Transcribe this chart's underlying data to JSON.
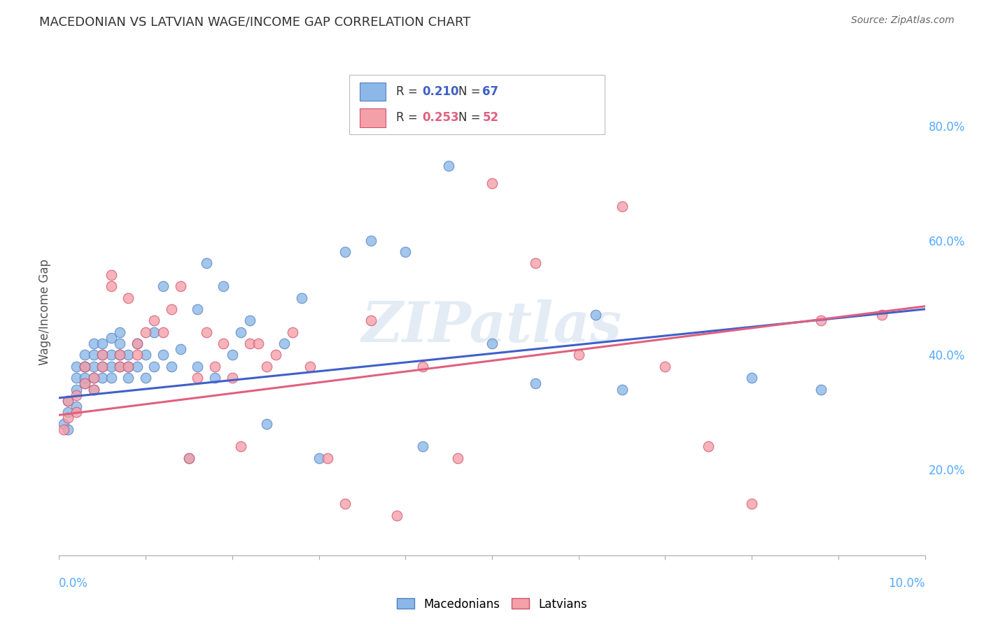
{
  "title": "MACEDONIAN VS LATVIAN WAGE/INCOME GAP CORRELATION CHART",
  "source": "Source: ZipAtlas.com",
  "ylabel": "Wage/Income Gap",
  "watermark": "ZIPatlas",
  "legend_blue_R_label": "R = ",
  "legend_blue_R_val": "0.210",
  "legend_blue_N_label": "N = ",
  "legend_blue_N_val": "67",
  "legend_pink_R_label": "R = ",
  "legend_pink_R_val": "0.253",
  "legend_pink_N_label": "N = ",
  "legend_pink_N_val": "52",
  "legend_blue_label": "Macedonians",
  "legend_pink_label": "Latvians",
  "blue_color": "#8BB8E8",
  "pink_color": "#F4A0A8",
  "blue_edge_color": "#5580C0",
  "pink_edge_color": "#D05070",
  "blue_line_color": "#4060C8",
  "pink_line_color": "#E06080",
  "background_color": "#FFFFFF",
  "grid_color": "#DDDDDD",
  "title_color": "#333333",
  "source_color": "#666666",
  "tick_label_color": "#55AAFF",
  "ylabel_color": "#555555",
  "x_min": 0.0,
  "x_max": 0.1,
  "y_min": 0.05,
  "y_max": 0.9,
  "blue_points_x": [
    0.0005,
    0.001,
    0.001,
    0.001,
    0.002,
    0.002,
    0.002,
    0.002,
    0.003,
    0.003,
    0.003,
    0.003,
    0.003,
    0.004,
    0.004,
    0.004,
    0.004,
    0.004,
    0.005,
    0.005,
    0.005,
    0.005,
    0.006,
    0.006,
    0.006,
    0.006,
    0.007,
    0.007,
    0.007,
    0.007,
    0.008,
    0.008,
    0.008,
    0.009,
    0.009,
    0.01,
    0.01,
    0.011,
    0.011,
    0.012,
    0.012,
    0.013,
    0.014,
    0.015,
    0.016,
    0.016,
    0.017,
    0.018,
    0.019,
    0.02,
    0.021,
    0.022,
    0.024,
    0.026,
    0.028,
    0.03,
    0.033,
    0.036,
    0.04,
    0.042,
    0.045,
    0.05,
    0.055,
    0.062,
    0.065,
    0.08,
    0.088
  ],
  "blue_points_y": [
    0.28,
    0.3,
    0.32,
    0.27,
    0.31,
    0.34,
    0.36,
    0.38,
    0.35,
    0.38,
    0.36,
    0.4,
    0.38,
    0.34,
    0.36,
    0.38,
    0.4,
    0.42,
    0.36,
    0.38,
    0.4,
    0.42,
    0.36,
    0.38,
    0.4,
    0.43,
    0.38,
    0.4,
    0.42,
    0.44,
    0.36,
    0.38,
    0.4,
    0.38,
    0.42,
    0.36,
    0.4,
    0.44,
    0.38,
    0.4,
    0.52,
    0.38,
    0.41,
    0.22,
    0.48,
    0.38,
    0.56,
    0.36,
    0.52,
    0.4,
    0.44,
    0.46,
    0.28,
    0.42,
    0.5,
    0.22,
    0.58,
    0.6,
    0.58,
    0.24,
    0.73,
    0.42,
    0.35,
    0.47,
    0.34,
    0.36,
    0.34
  ],
  "pink_points_x": [
    0.0005,
    0.001,
    0.001,
    0.002,
    0.002,
    0.003,
    0.003,
    0.004,
    0.004,
    0.005,
    0.005,
    0.006,
    0.006,
    0.007,
    0.007,
    0.008,
    0.008,
    0.009,
    0.009,
    0.01,
    0.011,
    0.012,
    0.013,
    0.014,
    0.015,
    0.016,
    0.017,
    0.018,
    0.019,
    0.02,
    0.021,
    0.022,
    0.023,
    0.024,
    0.025,
    0.027,
    0.029,
    0.031,
    0.033,
    0.036,
    0.039,
    0.042,
    0.046,
    0.05,
    0.055,
    0.06,
    0.065,
    0.07,
    0.075,
    0.08,
    0.088,
    0.095
  ],
  "pink_points_y": [
    0.27,
    0.29,
    0.32,
    0.3,
    0.33,
    0.35,
    0.38,
    0.36,
    0.34,
    0.38,
    0.4,
    0.52,
    0.54,
    0.4,
    0.38,
    0.38,
    0.5,
    0.4,
    0.42,
    0.44,
    0.46,
    0.44,
    0.48,
    0.52,
    0.22,
    0.36,
    0.44,
    0.38,
    0.42,
    0.36,
    0.24,
    0.42,
    0.42,
    0.38,
    0.4,
    0.44,
    0.38,
    0.22,
    0.14,
    0.46,
    0.12,
    0.38,
    0.22,
    0.7,
    0.56,
    0.4,
    0.66,
    0.38,
    0.24,
    0.14,
    0.46,
    0.47
  ],
  "blue_trend_x": [
    0.0,
    0.1
  ],
  "blue_trend_y": [
    0.325,
    0.48
  ],
  "pink_trend_x": [
    0.0,
    0.1
  ],
  "pink_trend_y": [
    0.295,
    0.485
  ],
  "right_ytick_labels": [
    "20.0%",
    "40.0%",
    "60.0%",
    "80.0%"
  ],
  "right_ytick_values": [
    0.2,
    0.4,
    0.6,
    0.8
  ],
  "xtick_positions": [
    0.0,
    0.01,
    0.02,
    0.03,
    0.04,
    0.05,
    0.06,
    0.07,
    0.08,
    0.09,
    0.1
  ]
}
